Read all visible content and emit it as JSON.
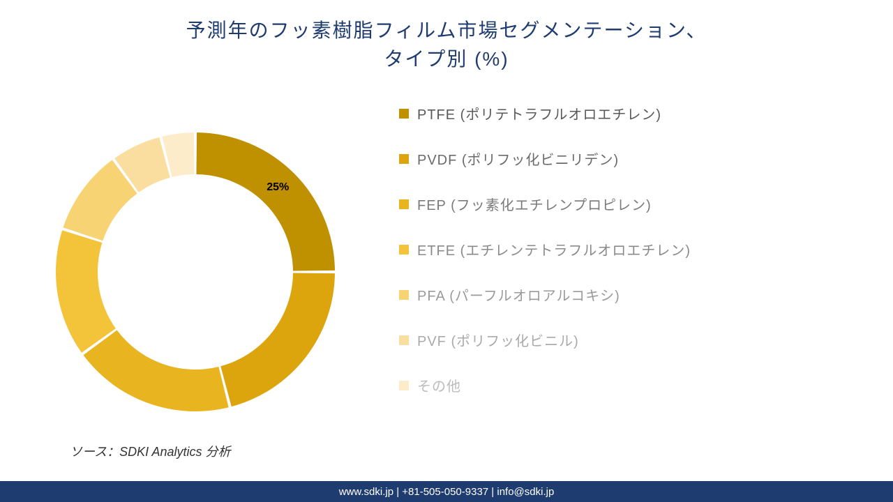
{
  "title": {
    "line1": "予測年のフッ素樹脂フィルム市場セグメンテーション、",
    "line2": "タイプ別 (%)",
    "color": "#1f3c71",
    "fontsize": 28
  },
  "chart": {
    "type": "donut",
    "outer_radius": 200,
    "inner_radius": 140,
    "gap_deg": 1.2,
    "background_color": "#ffffff",
    "slices": [
      {
        "label": "PTFE (ポリテトラフルオロエチレン)",
        "value": 25,
        "color": "#bf9000",
        "show_value": true,
        "value_text": "25%"
      },
      {
        "label": "PVDF (ポリフッ化ビニリデン)",
        "value": 21,
        "color": "#dca50e",
        "show_value": false
      },
      {
        "label": "FEP (フッ素化エチレンプロピレン)",
        "value": 19,
        "color": "#e8b420",
        "show_value": false
      },
      {
        "label": "ETFE (エチレンテトラフルオロエチレン)",
        "value": 15,
        "color": "#f3c43a",
        "show_value": false
      },
      {
        "label": "PFA (パーフルオロアルコキシ)",
        "value": 10,
        "color": "#f7d374",
        "show_value": false
      },
      {
        "label": "PVF (ポリフッ化ビニル)",
        "value": 6,
        "color": "#fadea0",
        "show_value": false
      },
      {
        "label": "その他",
        "value": 4,
        "color": "#fdecca",
        "show_value": false
      }
    ],
    "value_label_fontsize": 16,
    "value_label_weight": "700"
  },
  "legend": {
    "items": [
      {
        "label": "PTFE (ポリテトラフルオロエチレン)",
        "color": "#bf9000",
        "text_color": "#595959"
      },
      {
        "label": "PVDF (ポリフッ化ビニリデン)",
        "color": "#dca50e",
        "text_color": "#6a6a6a"
      },
      {
        "label": "FEP (フッ素化エチレンプロピレン)",
        "color": "#e8b420",
        "text_color": "#7a7a7a"
      },
      {
        "label": "ETFE (エチレンテトラフルオロエチレン)",
        "color": "#f3c43a",
        "text_color": "#8a8a8a"
      },
      {
        "label": "PFA (パーフルオロアルコキシ)",
        "color": "#f7d374",
        "text_color": "#9a9a9a"
      },
      {
        "label": "PVF (ポリフッ化ビニル)",
        "color": "#fadea0",
        "text_color": "#aaaaaa"
      },
      {
        "label": "その他",
        "color": "#fdecca",
        "text_color": "#bcbcbc"
      }
    ],
    "fontsize": 20,
    "swatch_size": 14
  },
  "source": {
    "prefix": "ソース：",
    "text": "SDKI Analytics 分析",
    "color": "#333333",
    "fontsize": 18
  },
  "footer": {
    "text": "www.sdki.jp | +81-505-050-9337 | info@sdki.jp",
    "background_color": "#1f3c71",
    "text_color": "#ffffff",
    "fontsize": 15
  }
}
